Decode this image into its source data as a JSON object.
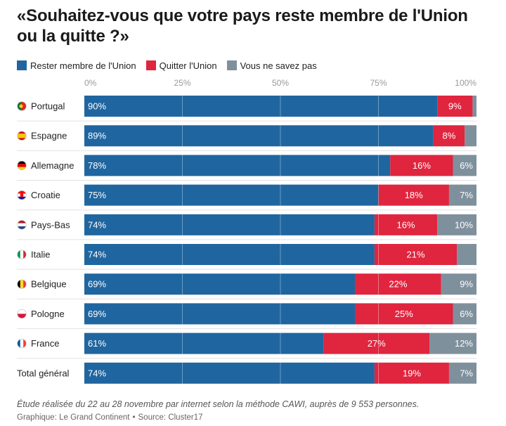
{
  "title_line1": "«Souhaitez-vous que votre pays reste membre de l'Union",
  "title_line2": "ou la quitte ?»",
  "footer": {
    "note": "Étude réalisée du 22 au 28 novembre par internet selon la méthode CAWI, auprès de 9 553 personnes.",
    "graphic": "Graphique: Le Grand Continent",
    "separator": "•",
    "source": "Source: Cluster17"
  },
  "chart_data": {
    "type": "bar",
    "orientation": "horizontal",
    "stacked": true,
    "xlim": [
      0,
      100
    ],
    "x_ticks": [
      "0%",
      "25%",
      "50%",
      "75%",
      "100%"
    ],
    "categories": [
      "Portugal",
      "Espagne",
      "Allemagne",
      "Croatie",
      "Pays-Bas",
      "Italie",
      "Belgique",
      "Pologne",
      "France",
      "Total général"
    ],
    "flags": [
      "PT",
      "ES",
      "DE",
      "HR",
      "NL",
      "IT",
      "BE",
      "PL",
      "FR",
      ""
    ],
    "legend_position": "top-left",
    "grid": true,
    "series": [
      {
        "name": "Rester membre de l'Union",
        "color": "#1f66a0",
        "values": [
          90,
          89,
          78,
          75,
          74,
          74,
          69,
          69,
          61,
          74
        ],
        "labels": [
          "90%",
          "89%",
          "78%",
          "75%",
          "74%",
          "74%",
          "69%",
          "69%",
          "61%",
          "74%"
        ]
      },
      {
        "name": "Quitter l'Union",
        "color": "#e0253f",
        "values": [
          9,
          8,
          16,
          18,
          16,
          21,
          22,
          25,
          27,
          19
        ],
        "labels": [
          "9%",
          "8%",
          "16%",
          "18%",
          "16%",
          "21%",
          "22%",
          "25%",
          "27%",
          "19%"
        ]
      },
      {
        "name": "Vous ne savez pas",
        "color": "#7f909d",
        "values": [
          1,
          3,
          6,
          7,
          10,
          5,
          9,
          6,
          12,
          7
        ],
        "labels": [
          "",
          "",
          "6%",
          "7%",
          "10%",
          "",
          "9%",
          "6%",
          "12%",
          "7%"
        ]
      }
    ]
  }
}
